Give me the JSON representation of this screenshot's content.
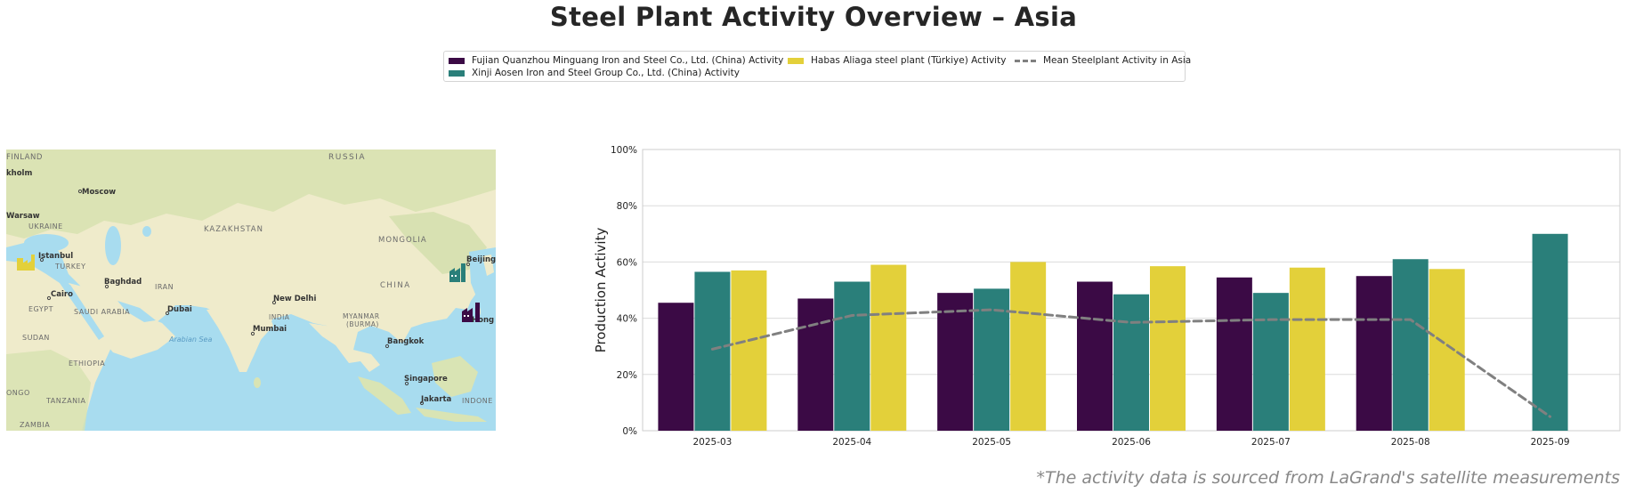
{
  "title": "Steel Plant Activity Overview – Asia",
  "legend": {
    "items": [
      {
        "label": "Fujian Quanzhou Minguang Iron and Steel Co., Ltd. (China) Activity",
        "color": "#3b0a45",
        "kind": "bar"
      },
      {
        "label": "Xinji Aosen Iron and Steel Group Co., Ltd. (China) Activity",
        "color": "#2a7f7a",
        "kind": "bar"
      },
      {
        "label": "Habas Aliaga steel plant (Türkiye) Activity",
        "color": "#e3d03a",
        "kind": "bar"
      },
      {
        "label": "Mean Steelplant Activity in Asia",
        "color": "#808080",
        "kind": "dashed-line"
      }
    ]
  },
  "map": {
    "labels": [
      {
        "text": "FINLAND"
      },
      {
        "text": "RUSSIA"
      },
      {
        "text": "kholm"
      },
      {
        "text": "Moscow"
      },
      {
        "text": "Warsaw"
      },
      {
        "text": "UKRAINE"
      },
      {
        "text": "KAZAKHSTAN"
      },
      {
        "text": "MONGOLIA"
      },
      {
        "text": "Istanbul"
      },
      {
        "text": "TURKEY"
      },
      {
        "text": "Beijing"
      },
      {
        "text": "Baghdad"
      },
      {
        "text": "IRAN"
      },
      {
        "text": "CHINA"
      },
      {
        "text": "Cairo"
      },
      {
        "text": "EGYPT"
      },
      {
        "text": "SAUDI ARABIA"
      },
      {
        "text": "Dubai"
      },
      {
        "text": "New Delhi"
      },
      {
        "text": "INDIA"
      },
      {
        "text": "MYANMAR"
      },
      {
        "text": "(BURMA)"
      },
      {
        "text": "Hong Kong"
      },
      {
        "text": "SUDAN"
      },
      {
        "text": "Arabian Sea"
      },
      {
        "text": "Mumbai"
      },
      {
        "text": "Bangkok"
      },
      {
        "text": "ETHIOPIA"
      },
      {
        "text": "Singapore"
      },
      {
        "text": "ONGO"
      },
      {
        "text": "TANZANIA"
      },
      {
        "text": "Jakarta"
      },
      {
        "text": "INDONE"
      },
      {
        "text": "ZAMBIA"
      }
    ]
  },
  "chart_data": {
    "type": "bar",
    "title": "Steel Plant Activity Overview – Asia",
    "xlabel": "",
    "ylabel": "Production Activity",
    "categories": [
      "2025-03",
      "2025-04",
      "2025-05",
      "2025-06",
      "2025-07",
      "2025-08",
      "2025-09"
    ],
    "ylim": [
      0,
      100
    ],
    "yticks": [
      "0%",
      "20%",
      "40%",
      "60%",
      "80%",
      "100%"
    ],
    "grid": true,
    "legend_position": "top-center",
    "series": [
      {
        "name": "Fujian Quanzhou Minguang Iron and Steel Co., Ltd. (China) Activity",
        "type": "bar",
        "color": "#3b0a45",
        "values": [
          45.5,
          47,
          49,
          53,
          54.5,
          55,
          null
        ]
      },
      {
        "name": "Xinji Aosen Iron and Steel Group Co., Ltd. (China) Activity",
        "type": "bar",
        "color": "#2a7f7a",
        "values": [
          56.5,
          53,
          50.5,
          48.5,
          49,
          61,
          70
        ]
      },
      {
        "name": "Habas Aliaga steel plant (Türkiye) Activity",
        "type": "bar",
        "color": "#e3d03a",
        "values": [
          57,
          59,
          60,
          58.5,
          58,
          57.5,
          null
        ]
      },
      {
        "name": "Mean Steelplant Activity in Asia",
        "type": "line",
        "style": "dashed",
        "color": "#808080",
        "values": [
          29,
          41,
          43,
          38.5,
          39.5,
          39.5,
          5
        ]
      }
    ]
  },
  "footnote": "*The activity data is sourced from LaGrand's satellite measurements"
}
